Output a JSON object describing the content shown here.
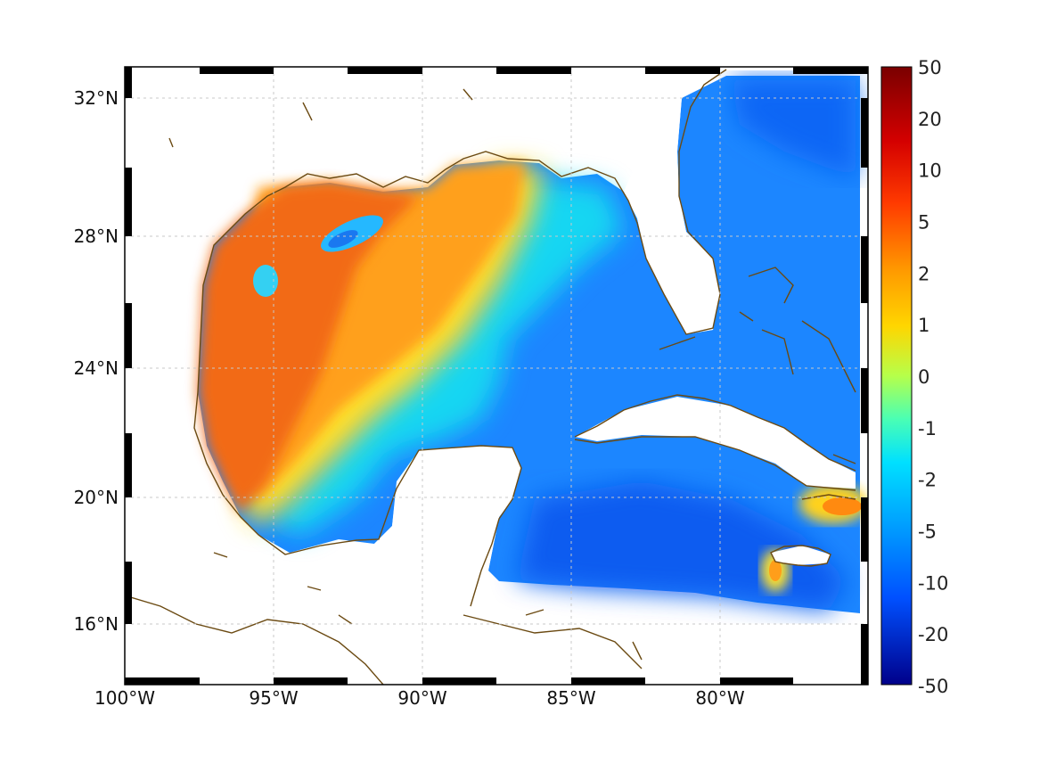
{
  "map": {
    "projection": "mercator-style lat/lon frame",
    "lon_range": [
      -100,
      -75
    ],
    "lat_range": [
      14,
      33
    ],
    "grid": true,
    "lon_ticks": [
      {
        "value": -100,
        "label": "100°W"
      },
      {
        "value": -95,
        "label": "95°W"
      },
      {
        "value": -90,
        "label": "90°W"
      },
      {
        "value": -85,
        "label": "85°W"
      },
      {
        "value": -80,
        "label": "80°W"
      }
    ],
    "lat_ticks": [
      {
        "value": 16,
        "label": "16°N"
      },
      {
        "value": 20,
        "label": "20°N"
      },
      {
        "value": 24,
        "label": "24°N"
      },
      {
        "value": 28,
        "label": "28°N"
      },
      {
        "value": 32,
        "label": "32°N"
      }
    ],
    "coastline_color": "#6b4a12",
    "field_colors": {
      "west_gulf": "#f26a14",
      "north_gulf": "#ffa01a",
      "transition": "#ffe629",
      "loop_current": "#00d8f4",
      "east": "#1c86ff",
      "deep_blue": "#0b5cf0"
    }
  },
  "colorbar": {
    "labels": [
      "50",
      "20",
      "10",
      "5",
      "2",
      "1",
      "0",
      "-1",
      "-2",
      "-5",
      "-10",
      "-20",
      "-50"
    ],
    "top_color": "#7a0000",
    "bottom_color": "#00008a"
  }
}
